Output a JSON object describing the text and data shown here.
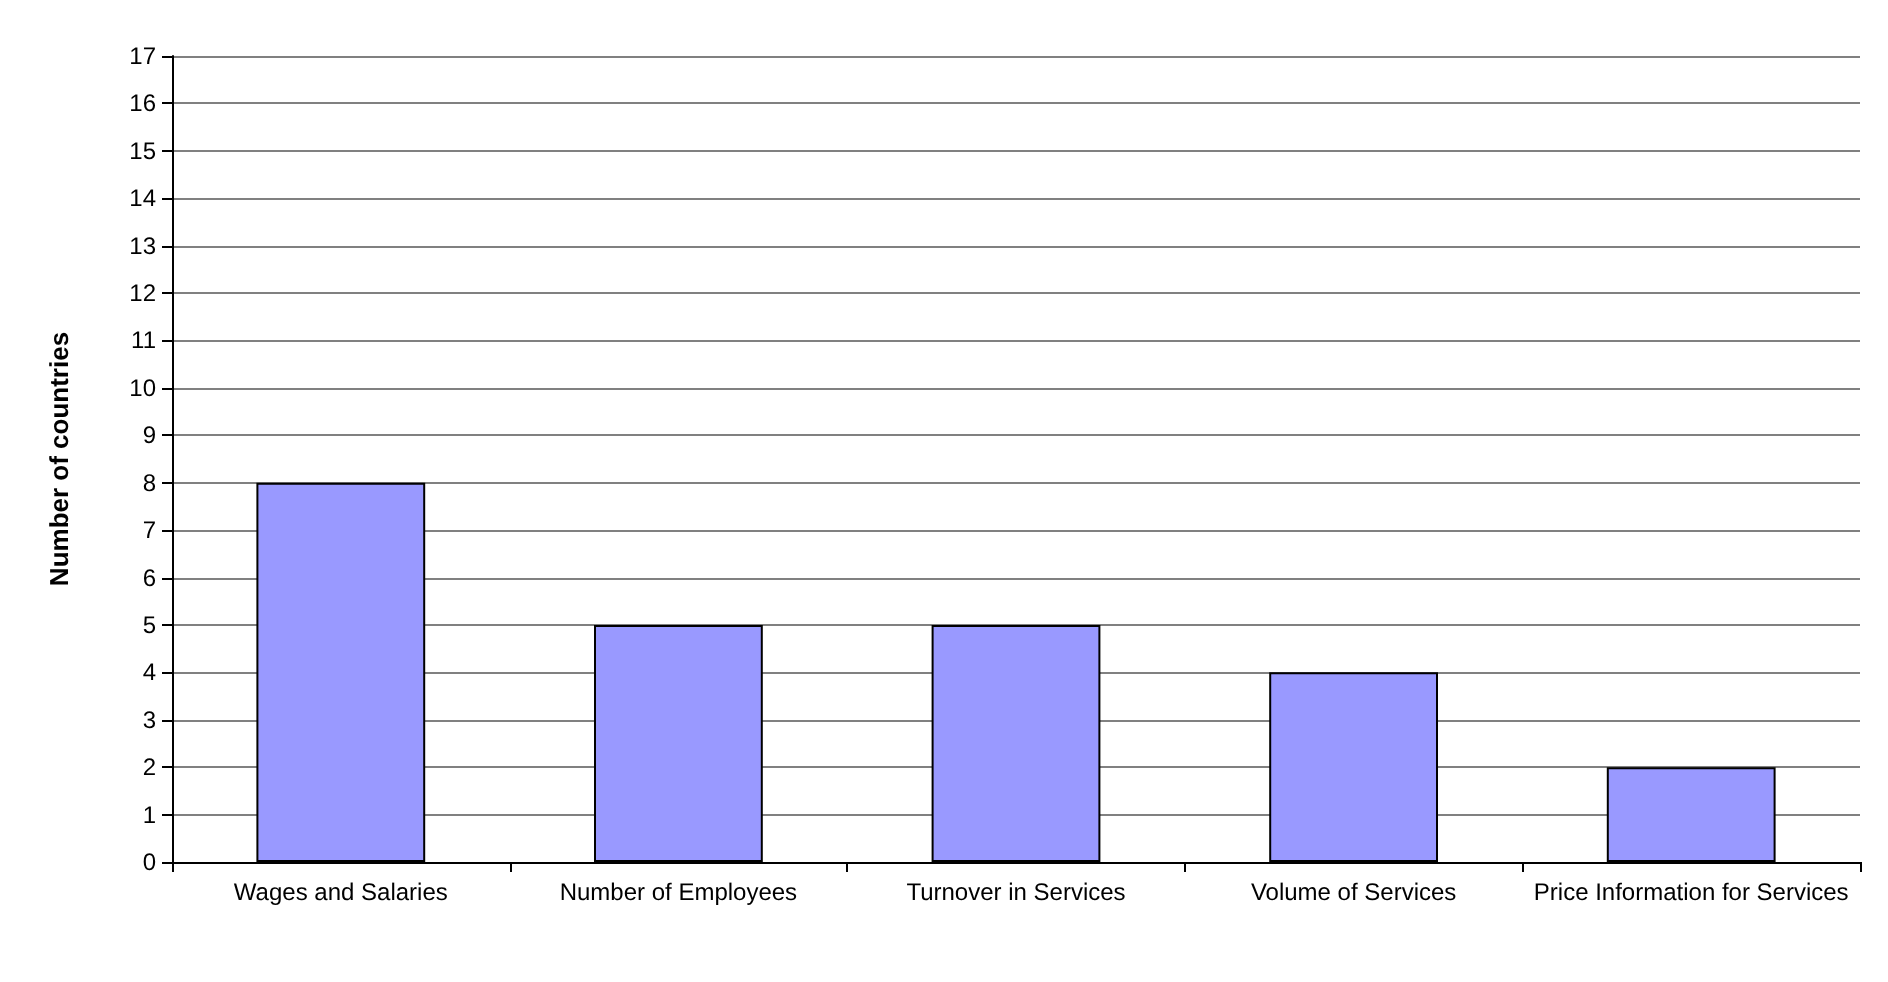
{
  "chart_data": {
    "type": "bar",
    "ylabel": "Number of countries",
    "categories": [
      "Wages and Salaries",
      "Number of Employees",
      "Turnover in Services",
      "Volume of Services",
      "Price Information for Services"
    ],
    "values": [
      8,
      5,
      5,
      4,
      2
    ],
    "color": "#9999ff",
    "ylim": [
      0,
      17
    ],
    "yticks": [
      0,
      1,
      2,
      3,
      4,
      5,
      6,
      7,
      8,
      9,
      10,
      11,
      12,
      13,
      14,
      15,
      16,
      17
    ],
    "grid": "y"
  }
}
